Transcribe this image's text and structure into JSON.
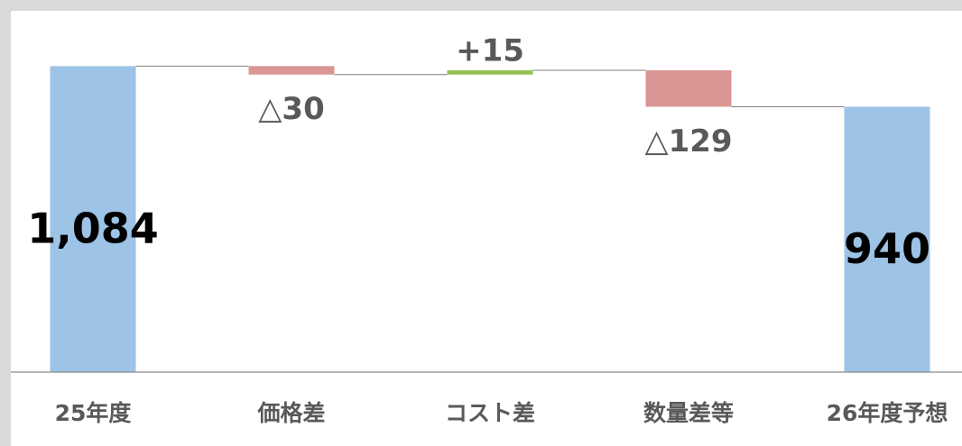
{
  "chart_data": {
    "type": "waterfall",
    "categories": [
      "25年度",
      "価格差",
      "コスト差",
      "数量差等",
      "26年度予想"
    ],
    "values": [
      1084,
      -30,
      15,
      -129,
      940
    ],
    "value_labels": [
      "1,084",
      "△30",
      "+15",
      "△129",
      "940"
    ],
    "colors": [
      "#9dc3e6",
      "#d99694",
      "#92c050",
      "#d99694",
      "#9dc3e6"
    ],
    "ylim": [
      0,
      1200
    ]
  }
}
